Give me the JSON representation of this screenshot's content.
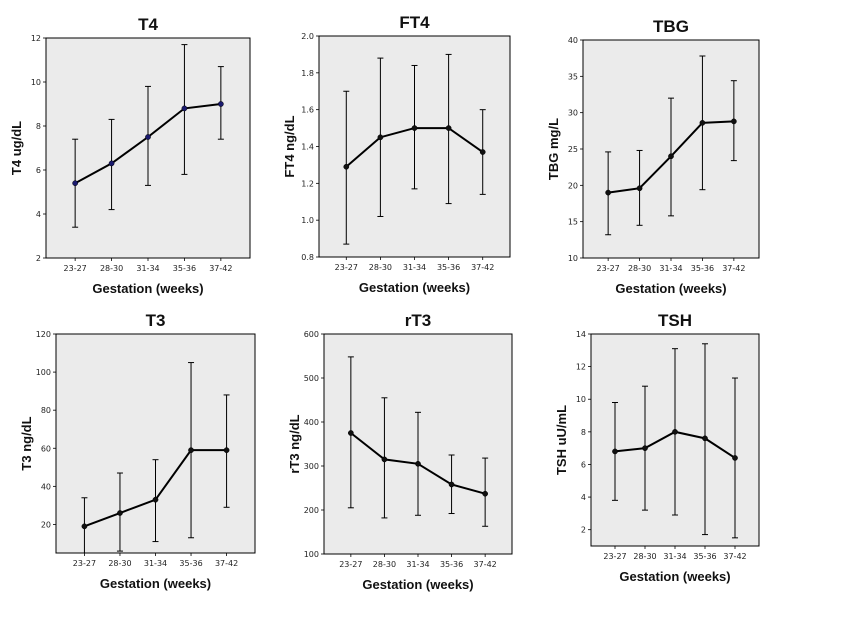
{
  "chart_data": [
    {
      "type": "line",
      "title": "T4",
      "xlabel": "Gestation (weeks)",
      "ylabel": "T4 ug/dL",
      "ylim": [
        2,
        12
      ],
      "yticks": [
        2,
        4,
        6,
        8,
        10,
        12
      ],
      "categories": [
        "23-27",
        "28-30",
        "31-34",
        "35-36",
        "37-42"
      ],
      "values": [
        5.4,
        6.3,
        7.5,
        8.8,
        9.0
      ],
      "error_low": [
        3.4,
        4.2,
        5.3,
        5.8,
        7.4
      ],
      "error_high": [
        7.4,
        8.3,
        9.8,
        11.7,
        10.7
      ],
      "marker_color": "#1a1a6e"
    },
    {
      "type": "line",
      "title": "FT4",
      "xlabel": "Gestation (weeks)",
      "ylabel": "FT4 ng/dL",
      "ylim": [
        0.8,
        2.0
      ],
      "yticks": [
        "0.8",
        "1.0",
        "1.2",
        "1.4",
        "1.6",
        "1.8",
        "2.0"
      ],
      "categories": [
        "23-27",
        "28-30",
        "31-34",
        "35-36",
        "37-42"
      ],
      "values": [
        1.29,
        1.45,
        1.5,
        1.5,
        1.37
      ],
      "error_low": [
        0.87,
        1.02,
        1.17,
        1.09,
        1.14
      ],
      "error_high": [
        1.7,
        1.88,
        1.84,
        1.9,
        1.6
      ],
      "marker_color": "#111111"
    },
    {
      "type": "line",
      "title": "TBG",
      "xlabel": "Gestation (weeks)",
      "ylabel": "TBG mg/L",
      "ylim": [
        10,
        40
      ],
      "yticks": [
        10,
        15,
        20,
        25,
        30,
        35,
        40
      ],
      "categories": [
        "23-27",
        "28-30",
        "31-34",
        "35-36",
        "37-42"
      ],
      "values": [
        19.0,
        19.6,
        24.0,
        28.6,
        28.8
      ],
      "error_low": [
        13.2,
        14.5,
        15.8,
        19.4,
        23.4
      ],
      "error_high": [
        24.6,
        24.8,
        32.0,
        37.8,
        34.4
      ],
      "marker_color": "#111111"
    },
    {
      "type": "line",
      "title": "T3",
      "xlabel": "Gestation (weeks)",
      "ylabel": "T3 ng/dL",
      "ylim": [
        5,
        120
      ],
      "yticks": [
        20,
        40,
        60,
        80,
        100,
        120
      ],
      "categories": [
        "23-27",
        "28-30",
        "31-34",
        "35-36",
        "37-42"
      ],
      "values": [
        19,
        26,
        33,
        59,
        59
      ],
      "error_low": [
        5,
        6,
        11,
        13,
        29
      ],
      "error_high": [
        34,
        47,
        54,
        105,
        88
      ],
      "marker_color": "#111111"
    },
    {
      "type": "line",
      "title": "rT3",
      "xlabel": "Gestation (weeks)",
      "ylabel": "rT3 ng/dL",
      "ylim": [
        100,
        600
      ],
      "yticks": [
        100,
        200,
        300,
        400,
        500,
        600
      ],
      "categories": [
        "23-27",
        "28-30",
        "31-34",
        "35-36",
        "37-42"
      ],
      "values": [
        375,
        315,
        305,
        258,
        237
      ],
      "error_low": [
        205,
        182,
        188,
        192,
        163
      ],
      "error_high": [
        548,
        455,
        422,
        325,
        318
      ],
      "marker_color": "#111111"
    },
    {
      "type": "line",
      "title": "TSH",
      "xlabel": "Gestation (weeks)",
      "ylabel": "TSH uU/mL",
      "ylim": [
        1,
        14
      ],
      "yticks": [
        2,
        4,
        6,
        8,
        10,
        12,
        14
      ],
      "categories": [
        "23-27",
        "28-30",
        "31-34",
        "35-36",
        "37-42"
      ],
      "values": [
        6.8,
        7.0,
        8.0,
        7.6,
        6.4
      ],
      "error_low": [
        3.8,
        3.2,
        2.9,
        1.7,
        1.5
      ],
      "error_high": [
        9.8,
        10.8,
        13.1,
        13.4,
        11.3
      ],
      "marker_color": "#111111"
    }
  ]
}
